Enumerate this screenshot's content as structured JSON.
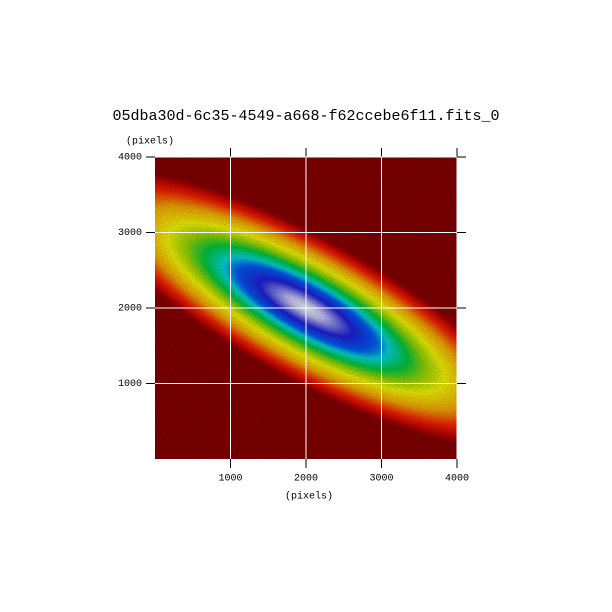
{
  "chart_data": {
    "type": "image",
    "title": "05dba30d-6c35-4549-a668-f62ccebe6f11.fits_0",
    "xlabel": "(pixels)",
    "ylabel": "(pixels)",
    "xlim": [
      0,
      4000
    ],
    "ylim": [
      0,
      4000
    ],
    "xticks": [
      1000,
      2000,
      3000,
      4000
    ],
    "yticks": [
      1000,
      2000,
      3000,
      4000
    ],
    "grid": true
  }
}
